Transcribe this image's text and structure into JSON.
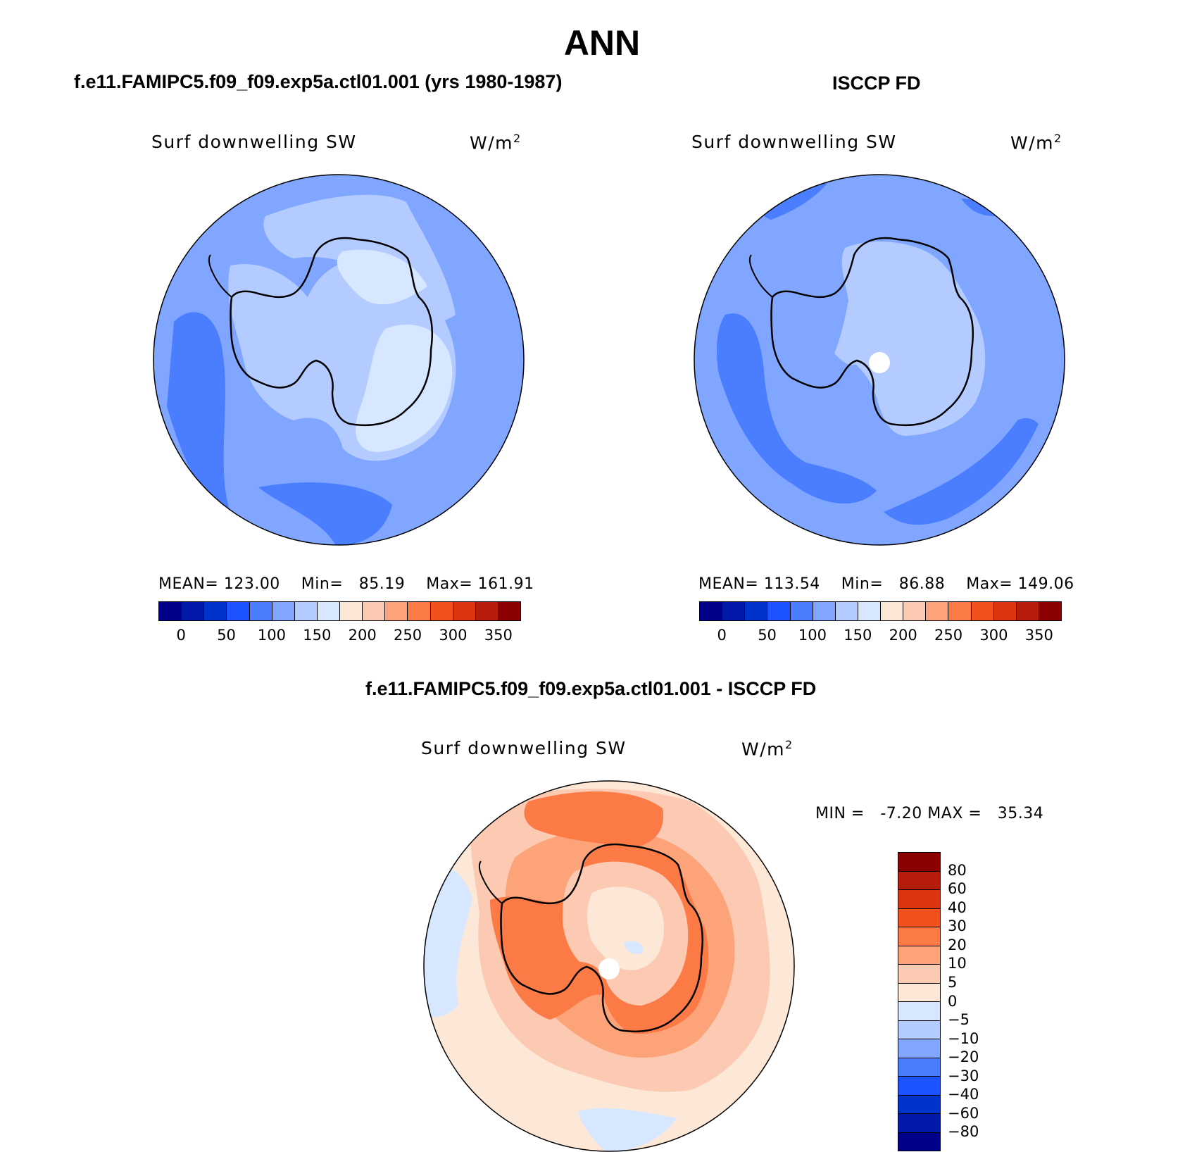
{
  "title": "ANN",
  "panels": [
    {
      "id": "model",
      "heading": "f.e11.FAMIPC5.f09_f09.exp5a.ctl01.001 (yrs 1980-1987)",
      "variable": "Surf downwelling SW",
      "units_base": "W/m",
      "units_exp": "2",
      "stats": {
        "mean_label": "MEAN=",
        "mean": "123.00",
        "min_label": "Min=",
        "min": "85.19",
        "max_label": "Max=",
        "max": "161.91"
      }
    },
    {
      "id": "obs",
      "heading": "ISCCP FD",
      "variable": "Surf downwelling SW",
      "units_base": "W/m",
      "units_exp": "2",
      "stats": {
        "mean_label": "MEAN=",
        "mean": "113.54",
        "min_label": "Min=",
        "min": "86.88",
        "max_label": "Max=",
        "max": "149.06"
      }
    },
    {
      "id": "diff",
      "heading": "f.e11.FAMIPC5.f09_f09.exp5a.ctl01.001 - ISCCP FD",
      "variable": "Surf downwelling SW",
      "units_base": "W/m",
      "units_exp": "2",
      "stats": {
        "min_label": "MIN =",
        "min": "-7.20",
        "max_label": "MAX =",
        "max": "35.34"
      }
    }
  ],
  "abs_colorbar": {
    "labels": [
      "0",
      "50",
      "100",
      "150",
      "200",
      "250",
      "300",
      "350"
    ],
    "colors": [
      "#00008b",
      "#0019a8",
      "#0033cc",
      "#1a53ff",
      "#4a7dff",
      "#80a6ff",
      "#b3cbff",
      "#d6e7ff",
      "#fde7d7",
      "#fccab2",
      "#fca37a",
      "#fc7a45",
      "#f2501c",
      "#dc3311",
      "#b51d0a",
      "#8b0000"
    ]
  },
  "diff_colorbar": {
    "labels": [
      "80",
      "60",
      "40",
      "30",
      "20",
      "10",
      "5",
      "0",
      "−5",
      "−10",
      "−20",
      "−30",
      "−40",
      "−60",
      "−80"
    ],
    "colors": [
      "#8b0000",
      "#b51d0a",
      "#dc3311",
      "#f2501c",
      "#fc7a45",
      "#fca37a",
      "#fccab2",
      "#fde7d7",
      "#d6e7ff",
      "#b3cbff",
      "#80a6ff",
      "#4a7dff",
      "#1a53ff",
      "#0033cc",
      "#0019a8",
      "#00008b"
    ]
  },
  "map_colors": {
    "c1": "#4a7dff",
    "c2": "#80a6ff",
    "c3": "#b3cbff",
    "c4": "#d6e7ff",
    "pos1": "#fde7d7",
    "pos2": "#fccab2",
    "pos3": "#fca37a",
    "pos4": "#fc7a45",
    "neg1": "#d6e7ff",
    "neg2": "#b3cbff"
  }
}
